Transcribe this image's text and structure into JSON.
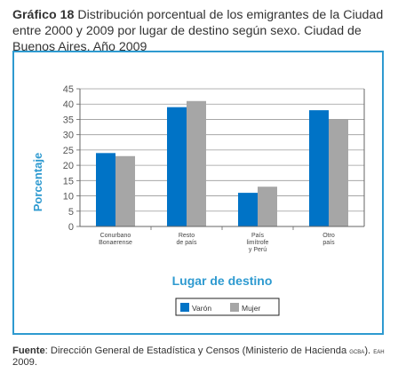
{
  "caption": {
    "number": "Gráfico 18",
    "text": "Distribución porcentual de los emigrantes de la Ciudad entre 2000 y 2009 por lugar de destino según sexo. Ciudad de Buenos Aires. Año 2009"
  },
  "colors": {
    "frame": "#2e9ad0",
    "axis_title": "#2e9ad0",
    "varon": "#0073c6",
    "mujer": "#a6a6a6"
  },
  "chart_data": {
    "type": "bar",
    "categories": [
      [
        "Conurbano",
        "Bonaerense"
      ],
      [
        "Resto",
        "de país"
      ],
      [
        "País",
        "limítrofe",
        "y Perú"
      ],
      [
        "Otro",
        "país"
      ]
    ],
    "series": [
      {
        "name": "Varón",
        "values": [
          24.0,
          39.0,
          11.0,
          38.0
        ]
      },
      {
        "name": "Mujer",
        "values": [
          23.0,
          41.0,
          13.0,
          35.0
        ]
      }
    ],
    "title": "",
    "xlabel": "Lugar de destino",
    "ylabel": "Porcentaje",
    "ylim": [
      0,
      45
    ],
    "yticks": [
      "0",
      "5",
      "10",
      "15",
      "20",
      "25",
      "30",
      "35",
      "40",
      "45"
    ],
    "grid": true,
    "legend_position": "bottom"
  },
  "source": {
    "label": "Fuente",
    "text_a": ": Dirección General de Estadística y Censos (Ministerio de Hacienda ",
    "org": "gcba",
    "text_b": "). ",
    "survey": "eah",
    "text_c": " 2009."
  }
}
